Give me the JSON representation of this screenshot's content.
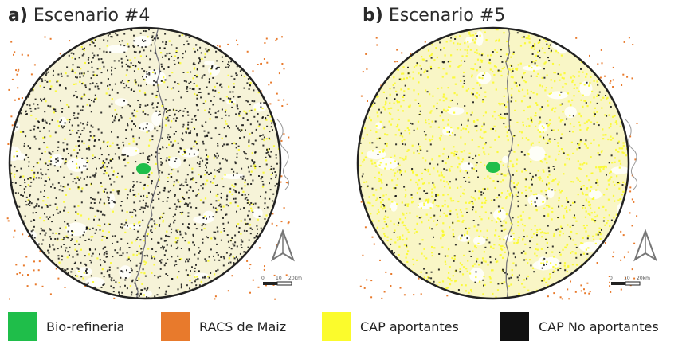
{
  "panels": [
    {
      "letter": "a)",
      "title": "Escenario #4"
    },
    {
      "letter": "b)",
      "title": "Escenario #5"
    }
  ],
  "scale_labels": [
    "0",
    "10",
    "20km"
  ],
  "legend": [
    {
      "label": "Bio-refineria",
      "color": "#1fbe4a"
    },
    {
      "label": "RACS de Maiz",
      "color": "#e87a2c"
    },
    {
      "label": "CAP aportantes",
      "color": "#fbfb2c"
    },
    {
      "label": "CAP No aportantes",
      "color": "#111111"
    }
  ]
}
